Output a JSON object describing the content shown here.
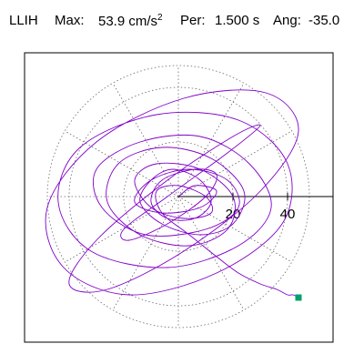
{
  "header": {
    "station": "LLIH",
    "max_label": "Max:",
    "max_value": "53.9",
    "max_unit": "cm/s",
    "max_unit_exp": "2",
    "period_label": "Per:",
    "period_value": "1.500 s",
    "angle_label": "Ang:",
    "angle_value": "-35.0"
  },
  "colors": {
    "trace": "#8000c8",
    "end_marker": "#00a070",
    "grid": "#6a6a6a",
    "axis": "#000000",
    "frame": "#000000"
  },
  "chart_data": {
    "type": "line",
    "title": "",
    "xlabel": "",
    "ylabel": "",
    "axis_angle_deg": 0,
    "rings": [
      20,
      40
    ],
    "grid_radius_outer": 48,
    "radial_spokes": 12,
    "tick_labels": [
      "20",
      "40"
    ],
    "xlim": [
      -58,
      58
    ],
    "ylim": [
      -53,
      53
    ],
    "series": [
      {
        "x": [
          0,
          6,
          14,
          8,
          -6,
          -16,
          -10,
          4,
          18,
          22,
          10,
          -12,
          -28,
          -30,
          -14,
          8,
          26,
          34,
          22,
          -4,
          -32,
          -44,
          -36,
          -8,
          22,
          40,
          38,
          14,
          -18,
          -42,
          -48,
          -30,
          2,
          32,
          44,
          30,
          2,
          -26,
          -40,
          -30,
          -4,
          20,
          30,
          18,
          -4,
          -20,
          -18,
          -4,
          10,
          14,
          6,
          -6,
          -10,
          -4,
          6,
          12,
          8,
          -2,
          -10,
          -14,
          -6,
          8,
          20,
          24,
          12,
          -6,
          -22,
          -26,
          -14,
          4,
          18,
          20,
          8,
          -8,
          -16,
          -10,
          2,
          12,
          10,
          0,
          -8,
          -6,
          4,
          14,
          22,
          30,
          36,
          40,
          42,
          44
        ],
        "y": [
          0,
          4,
          2,
          -4,
          -6,
          -2,
          6,
          10,
          6,
          -4,
          -12,
          -14,
          -4,
          10,
          20,
          22,
          12,
          -4,
          -18,
          -26,
          -20,
          -2,
          18,
          30,
          28,
          12,
          -10,
          -28,
          -36,
          -26,
          -4,
          20,
          36,
          38,
          24,
          2,
          -20,
          -34,
          -32,
          -16,
          6,
          22,
          26,
          16,
          0,
          -12,
          -16,
          -10,
          0,
          8,
          10,
          6,
          -2,
          -8,
          -8,
          -2,
          6,
          10,
          6,
          -2,
          -10,
          -14,
          -10,
          2,
          14,
          18,
          12,
          -2,
          -14,
          -18,
          -12,
          0,
          10,
          12,
          6,
          -4,
          -8,
          -6,
          0,
          4,
          2,
          -6,
          -14,
          -22,
          -28,
          -32,
          -34,
          -36,
          -36,
          -37
        ],
        "end_point": [
          44,
          -37
        ]
      }
    ]
  }
}
